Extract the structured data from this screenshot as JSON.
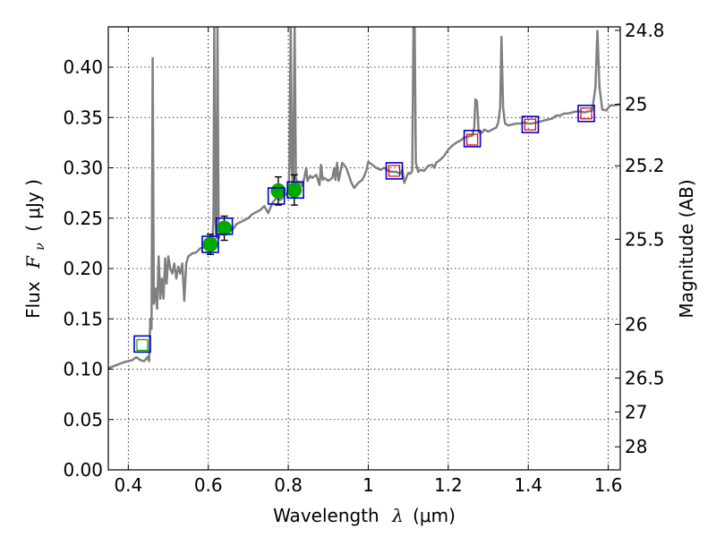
{
  "chart_data": {
    "type": "line",
    "title": "",
    "xlabel": {
      "text": "Wavelength",
      "symbol": "λ",
      "unit": "(μm)"
    },
    "ylabel": {
      "text": "Flux",
      "symbol": "F",
      "subscript": "ν",
      "unit": "( μJy )"
    },
    "y2label": "Magnitude (AB)",
    "xlim": [
      0.35,
      1.63
    ],
    "ylim": [
      0.0,
      0.44
    ],
    "grid": true,
    "x_ticks": [
      {
        "value": 0.4,
        "label": "0.4"
      },
      {
        "value": 0.6,
        "label": "0.6"
      },
      {
        "value": 0.8,
        "label": "0.8"
      },
      {
        "value": 1.0,
        "label": "1"
      },
      {
        "value": 1.2,
        "label": "1.2"
      },
      {
        "value": 1.4,
        "label": "1.4"
      },
      {
        "value": 1.6,
        "label": "1.6"
      }
    ],
    "y_ticks": [
      {
        "value": 0.0,
        "label": "0.00"
      },
      {
        "value": 0.05,
        "label": "0.05"
      },
      {
        "value": 0.1,
        "label": "0.10"
      },
      {
        "value": 0.15,
        "label": "0.15"
      },
      {
        "value": 0.2,
        "label": "0.20"
      },
      {
        "value": 0.25,
        "label": "0.25"
      },
      {
        "value": 0.3,
        "label": "0.30"
      },
      {
        "value": 0.35,
        "label": "0.35"
      },
      {
        "value": 0.4,
        "label": "0.40"
      }
    ],
    "y2_ticks": [
      {
        "value": 24.8,
        "label": "24.8"
      },
      {
        "value": 25.0,
        "label": "25"
      },
      {
        "value": 25.2,
        "label": "25.2"
      },
      {
        "value": 25.5,
        "label": "25.5"
      },
      {
        "value": 26.0,
        "label": "26"
      },
      {
        "value": 26.5,
        "label": "26.5"
      },
      {
        "value": 27.0,
        "label": "27"
      },
      {
        "value": 28.0,
        "label": "28"
      }
    ],
    "colors": {
      "spectrum": "#808080",
      "observed": "#00aa00",
      "model_box": "#0000cc",
      "predicted": "#dd0000",
      "errorbar": "#000000",
      "blue_band": "#00aa00"
    },
    "spectrum": [
      [
        0.35,
        0.101
      ],
      [
        0.37,
        0.104
      ],
      [
        0.39,
        0.107
      ],
      [
        0.41,
        0.109
      ],
      [
        0.42,
        0.112
      ],
      [
        0.43,
        0.109
      ],
      [
        0.44,
        0.108
      ],
      [
        0.448,
        0.112
      ],
      [
        0.452,
        0.108
      ],
      [
        0.455,
        0.15
      ],
      [
        0.458,
        0.14
      ],
      [
        0.461,
        0.409
      ],
      [
        0.464,
        0.165
      ],
      [
        0.468,
        0.18
      ],
      [
        0.472,
        0.16
      ],
      [
        0.476,
        0.212
      ],
      [
        0.48,
        0.17
      ],
      [
        0.484,
        0.19
      ],
      [
        0.488,
        0.17
      ],
      [
        0.492,
        0.21
      ],
      [
        0.496,
        0.185
      ],
      [
        0.5,
        0.212
      ],
      [
        0.505,
        0.2
      ],
      [
        0.51,
        0.195
      ],
      [
        0.515,
        0.205
      ],
      [
        0.52,
        0.19
      ],
      [
        0.525,
        0.202
      ],
      [
        0.53,
        0.195
      ],
      [
        0.535,
        0.205
      ],
      [
        0.54,
        0.168
      ],
      [
        0.545,
        0.205
      ],
      [
        0.55,
        0.212
      ],
      [
        0.56,
        0.215
      ],
      [
        0.57,
        0.216
      ],
      [
        0.58,
        0.22
      ],
      [
        0.59,
        0.221
      ],
      [
        0.6,
        0.224
      ],
      [
        0.605,
        0.225
      ],
      [
        0.61,
        0.222
      ],
      [
        0.613,
        0.25
      ],
      [
        0.615,
        0.44
      ],
      [
        0.617,
        0.26
      ],
      [
        0.62,
        0.23
      ],
      [
        0.623,
        0.44
      ],
      [
        0.626,
        0.23
      ],
      [
        0.63,
        0.236
      ],
      [
        0.64,
        0.24
      ],
      [
        0.65,
        0.242
      ],
      [
        0.66,
        0.238
      ],
      [
        0.67,
        0.244
      ],
      [
        0.68,
        0.246
      ],
      [
        0.69,
        0.248
      ],
      [
        0.7,
        0.25
      ],
      [
        0.71,
        0.254
      ],
      [
        0.72,
        0.256
      ],
      [
        0.73,
        0.258
      ],
      [
        0.74,
        0.262
      ],
      [
        0.75,
        0.255
      ],
      [
        0.76,
        0.265
      ],
      [
        0.77,
        0.27
      ],
      [
        0.78,
        0.268
      ],
      [
        0.79,
        0.272
      ],
      [
        0.8,
        0.276
      ],
      [
        0.803,
        0.3
      ],
      [
        0.806,
        0.44
      ],
      [
        0.809,
        0.3
      ],
      [
        0.812,
        0.275
      ],
      [
        0.816,
        0.44
      ],
      [
        0.819,
        0.29
      ],
      [
        0.825,
        0.283
      ],
      [
        0.83,
        0.286
      ],
      [
        0.835,
        0.282
      ],
      [
        0.84,
        0.29
      ],
      [
        0.845,
        0.3
      ],
      [
        0.848,
        0.287
      ],
      [
        0.855,
        0.292
      ],
      [
        0.86,
        0.29
      ],
      [
        0.87,
        0.293
      ],
      [
        0.878,
        0.283
      ],
      [
        0.882,
        0.303
      ],
      [
        0.886,
        0.288
      ],
      [
        0.89,
        0.29
      ],
      [
        0.9,
        0.287
      ],
      [
        0.91,
        0.29
      ],
      [
        0.915,
        0.3
      ],
      [
        0.918,
        0.288
      ],
      [
        0.922,
        0.305
      ],
      [
        0.926,
        0.287
      ],
      [
        0.935,
        0.305
      ],
      [
        0.945,
        0.3
      ],
      [
        0.952,
        0.292
      ],
      [
        0.958,
        0.285
      ],
      [
        0.965,
        0.28
      ],
      [
        0.975,
        0.285
      ],
      [
        0.985,
        0.288
      ],
      [
        0.99,
        0.292
      ],
      [
        0.995,
        0.297
      ],
      [
        1.0,
        0.306
      ],
      [
        1.01,
        0.303
      ],
      [
        1.02,
        0.3
      ],
      [
        1.03,
        0.298
      ],
      [
        1.04,
        0.3
      ],
      [
        1.05,
        0.297
      ],
      [
        1.06,
        0.296
      ],
      [
        1.07,
        0.296
      ],
      [
        1.08,
        0.294
      ],
      [
        1.085,
        0.298
      ],
      [
        1.09,
        0.285
      ],
      [
        1.095,
        0.29
      ],
      [
        1.1,
        0.295
      ],
      [
        1.105,
        0.294
      ],
      [
        1.11,
        0.297
      ],
      [
        1.113,
        0.44
      ],
      [
        1.116,
        0.44
      ],
      [
        1.119,
        0.305
      ],
      [
        1.125,
        0.296
      ],
      [
        1.13,
        0.298
      ],
      [
        1.14,
        0.297
      ],
      [
        1.15,
        0.302
      ],
      [
        1.16,
        0.303
      ],
      [
        1.165,
        0.3
      ],
      [
        1.17,
        0.305
      ],
      [
        1.18,
        0.308
      ],
      [
        1.19,
        0.312
      ],
      [
        1.2,
        0.318
      ],
      [
        1.21,
        0.322
      ],
      [
        1.22,
        0.325
      ],
      [
        1.23,
        0.327
      ],
      [
        1.24,
        0.33
      ],
      [
        1.25,
        0.331
      ],
      [
        1.26,
        0.332
      ],
      [
        1.265,
        0.34
      ],
      [
        1.268,
        0.368
      ],
      [
        1.272,
        0.366
      ],
      [
        1.276,
        0.335
      ],
      [
        1.285,
        0.335
      ],
      [
        1.29,
        0.338
      ],
      [
        1.3,
        0.336
      ],
      [
        1.31,
        0.338
      ],
      [
        1.32,
        0.34
      ],
      [
        1.325,
        0.345
      ],
      [
        1.33,
        0.36
      ],
      [
        1.333,
        0.43
      ],
      [
        1.337,
        0.36
      ],
      [
        1.342,
        0.344
      ],
      [
        1.35,
        0.342
      ],
      [
        1.36,
        0.343
      ],
      [
        1.37,
        0.344
      ],
      [
        1.38,
        0.344
      ],
      [
        1.39,
        0.345
      ],
      [
        1.4,
        0.344
      ],
      [
        1.41,
        0.344
      ],
      [
        1.42,
        0.345
      ],
      [
        1.43,
        0.346
      ],
      [
        1.44,
        0.347
      ],
      [
        1.45,
        0.348
      ],
      [
        1.46,
        0.349
      ],
      [
        1.47,
        0.352
      ],
      [
        1.48,
        0.352
      ],
      [
        1.49,
        0.354
      ],
      [
        1.5,
        0.354
      ],
      [
        1.51,
        0.355
      ],
      [
        1.52,
        0.356
      ],
      [
        1.53,
        0.356
      ],
      [
        1.54,
        0.355
      ],
      [
        1.55,
        0.356
      ],
      [
        1.56,
        0.357
      ],
      [
        1.568,
        0.38
      ],
      [
        1.573,
        0.436
      ],
      [
        1.578,
        0.38
      ],
      [
        1.585,
        0.358
      ],
      [
        1.595,
        0.357
      ],
      [
        1.605,
        0.362
      ],
      [
        1.615,
        0.362
      ],
      [
        1.63,
        0.363
      ]
    ],
    "observed_points": [
      {
        "x": 0.605,
        "y": 0.224,
        "err": 0.01
      },
      {
        "x": 0.64,
        "y": 0.24,
        "err": 0.012
      },
      {
        "x": 0.775,
        "y": 0.277,
        "err": 0.014
      },
      {
        "x": 0.815,
        "y": 0.278,
        "err": 0.015
      }
    ],
    "model_boxes": [
      {
        "x": 0.435,
        "y": 0.125
      },
      {
        "x": 0.605,
        "y": 0.224
      },
      {
        "x": 0.64,
        "y": 0.242
      },
      {
        "x": 0.77,
        "y": 0.272
      },
      {
        "x": 0.818,
        "y": 0.278
      },
      {
        "x": 1.065,
        "y": 0.297
      },
      {
        "x": 1.26,
        "y": 0.329
      },
      {
        "x": 1.405,
        "y": 0.343
      },
      {
        "x": 1.545,
        "y": 0.354
      }
    ],
    "predicted_points": [
      {
        "x": 1.065,
        "y": 0.297
      },
      {
        "x": 1.26,
        "y": 0.328
      },
      {
        "x": 1.405,
        "y": 0.343
      },
      {
        "x": 1.545,
        "y": 0.354
      }
    ],
    "blue_band_point": {
      "x": 0.435,
      "y": 0.124
    }
  }
}
